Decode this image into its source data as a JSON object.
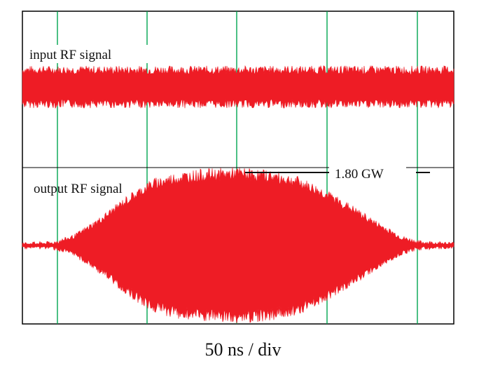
{
  "chart_data": {
    "type": "line",
    "title": "",
    "xlabel": "50 ns / div",
    "ylabel": "",
    "grid": true,
    "colors": {
      "signal": "#ee1c25",
      "grid": "#00a651",
      "frame": "#000000"
    },
    "annotations": {
      "input_label": "input RF signal",
      "output_label": "output RF signal",
      "power_marker": "1.80 GW"
    },
    "series": [
      {
        "name": "input RF signal",
        "envelope_x_div": [
          0,
          5
        ],
        "envelope_amplitude_rel": [
          1.0,
          1.0
        ]
      },
      {
        "name": "output RF signal",
        "envelope_x_div": [
          0,
          0.35,
          0.6,
          0.9,
          1.2,
          1.5,
          1.8,
          2.1,
          2.5,
          2.9,
          3.2,
          3.5,
          3.8,
          4.1,
          4.4,
          4.6,
          4.8,
          5.0
        ],
        "envelope_amplitude_rel": [
          0.02,
          0.03,
          0.12,
          0.35,
          0.62,
          0.85,
          0.94,
          0.98,
          1.0,
          0.96,
          0.88,
          0.72,
          0.52,
          0.3,
          0.1,
          0.04,
          0.03,
          0.02
        ]
      }
    ]
  }
}
